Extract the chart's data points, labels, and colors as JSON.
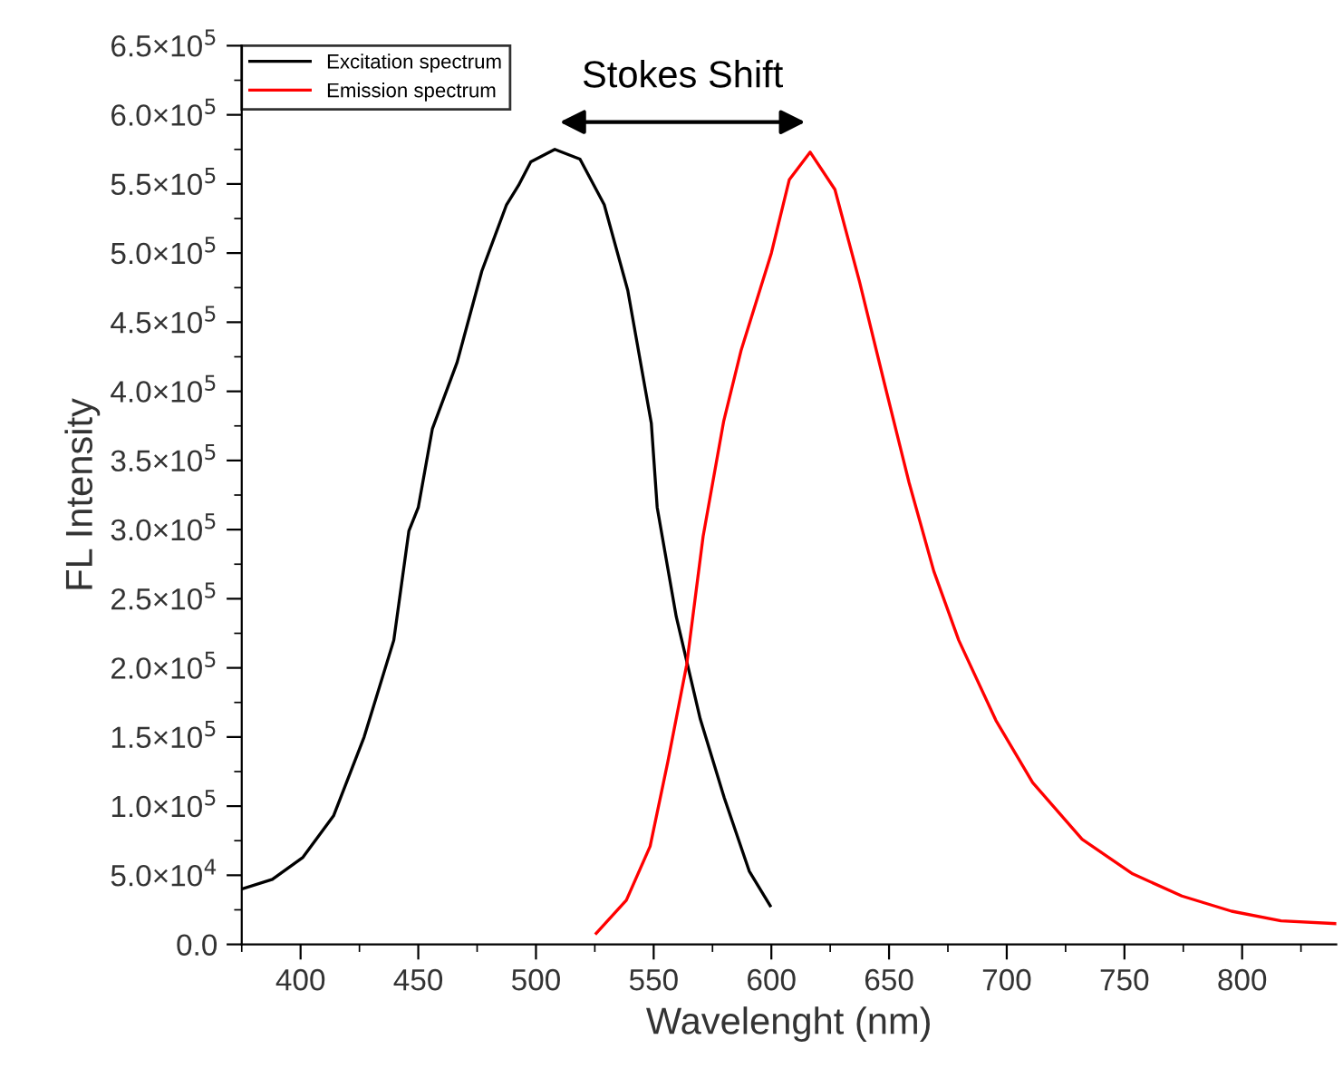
{
  "chart_data": {
    "type": "line",
    "xlabel": "Wavelenght (nm)",
    "ylabel": "FL Intensity",
    "xlim": [
      375,
      840
    ],
    "ylim": [
      0,
      650000
    ],
    "xticks": [
      400,
      450,
      500,
      550,
      600,
      650,
      700,
      750,
      800
    ],
    "yticks": [
      {
        "value": 0,
        "label": "0.0"
      },
      {
        "value": 50000,
        "label": "5.0×10$^{4}$"
      },
      {
        "value": 100000,
        "label": "1.0×10$^{5}$"
      },
      {
        "value": 150000,
        "label": "1.5×10$^{5}$"
      },
      {
        "value": 200000,
        "label": "2.0×10$^{5}$"
      },
      {
        "value": 250000,
        "label": "2.5×10$^{5}$"
      },
      {
        "value": 300000,
        "label": "3.0×10$^{5}$"
      },
      {
        "value": 350000,
        "label": "3.5×10$^{5}$"
      },
      {
        "value": 400000,
        "label": "4.0×10$^{5}$"
      },
      {
        "value": 450000,
        "label": "4.5×10$^{5}$"
      },
      {
        "value": 500000,
        "label": "5.0×10$^{5}$"
      },
      {
        "value": 550000,
        "label": "5.5×10$^{5}$"
      },
      {
        "value": 600000,
        "label": "6.0×10$^{5}$"
      },
      {
        "value": 650000,
        "label": "6.5×10$^{5}$"
      }
    ],
    "grid": false,
    "legend": "top left",
    "marker": "none",
    "line_style": "solid",
    "series": [
      {
        "name": "Excitation spectrum",
        "color": "#000000",
        "x": [
          375,
          388,
          401,
          414,
          427,
          439.6,
          446,
          450,
          456,
          466.5,
          477,
          487.5,
          492.6,
          497.8,
          508,
          518.7,
          529,
          539,
          549,
          551.5,
          559.6,
          569.8,
          580,
          590.6,
          599.5
        ],
        "values": [
          40000,
          47000,
          63000,
          93000,
          150000,
          220000,
          299000,
          316000,
          373000,
          421000,
          487000,
          535000,
          549000,
          566000,
          575000,
          568000,
          535000,
          473000,
          377000,
          316000,
          237000,
          163000,
          106000,
          53000,
          28000
        ]
      },
      {
        "name": "Emission spectrum",
        "color": "#ff0000",
        "x": [
          525.6,
          538.4,
          548.5,
          556,
          564,
          571,
          579.7,
          587.2,
          600,
          607.6,
          616.5,
          627,
          637.5,
          648,
          658.5,
          669,
          679.6,
          695.4,
          711,
          732,
          753.5,
          774.4,
          795.5,
          816.5,
          840
        ],
        "values": [
          8000,
          32000,
          71000,
          132000,
          202000,
          295000,
          378000,
          430000,
          500000,
          553000,
          573000,
          546000,
          479000,
          406000,
          334000,
          270000,
          220000,
          162000,
          117000,
          76000,
          51000,
          35000,
          24000,
          17000,
          15000
        ]
      }
    ],
    "annotations": [
      "Stokes Shift"
    ]
  }
}
